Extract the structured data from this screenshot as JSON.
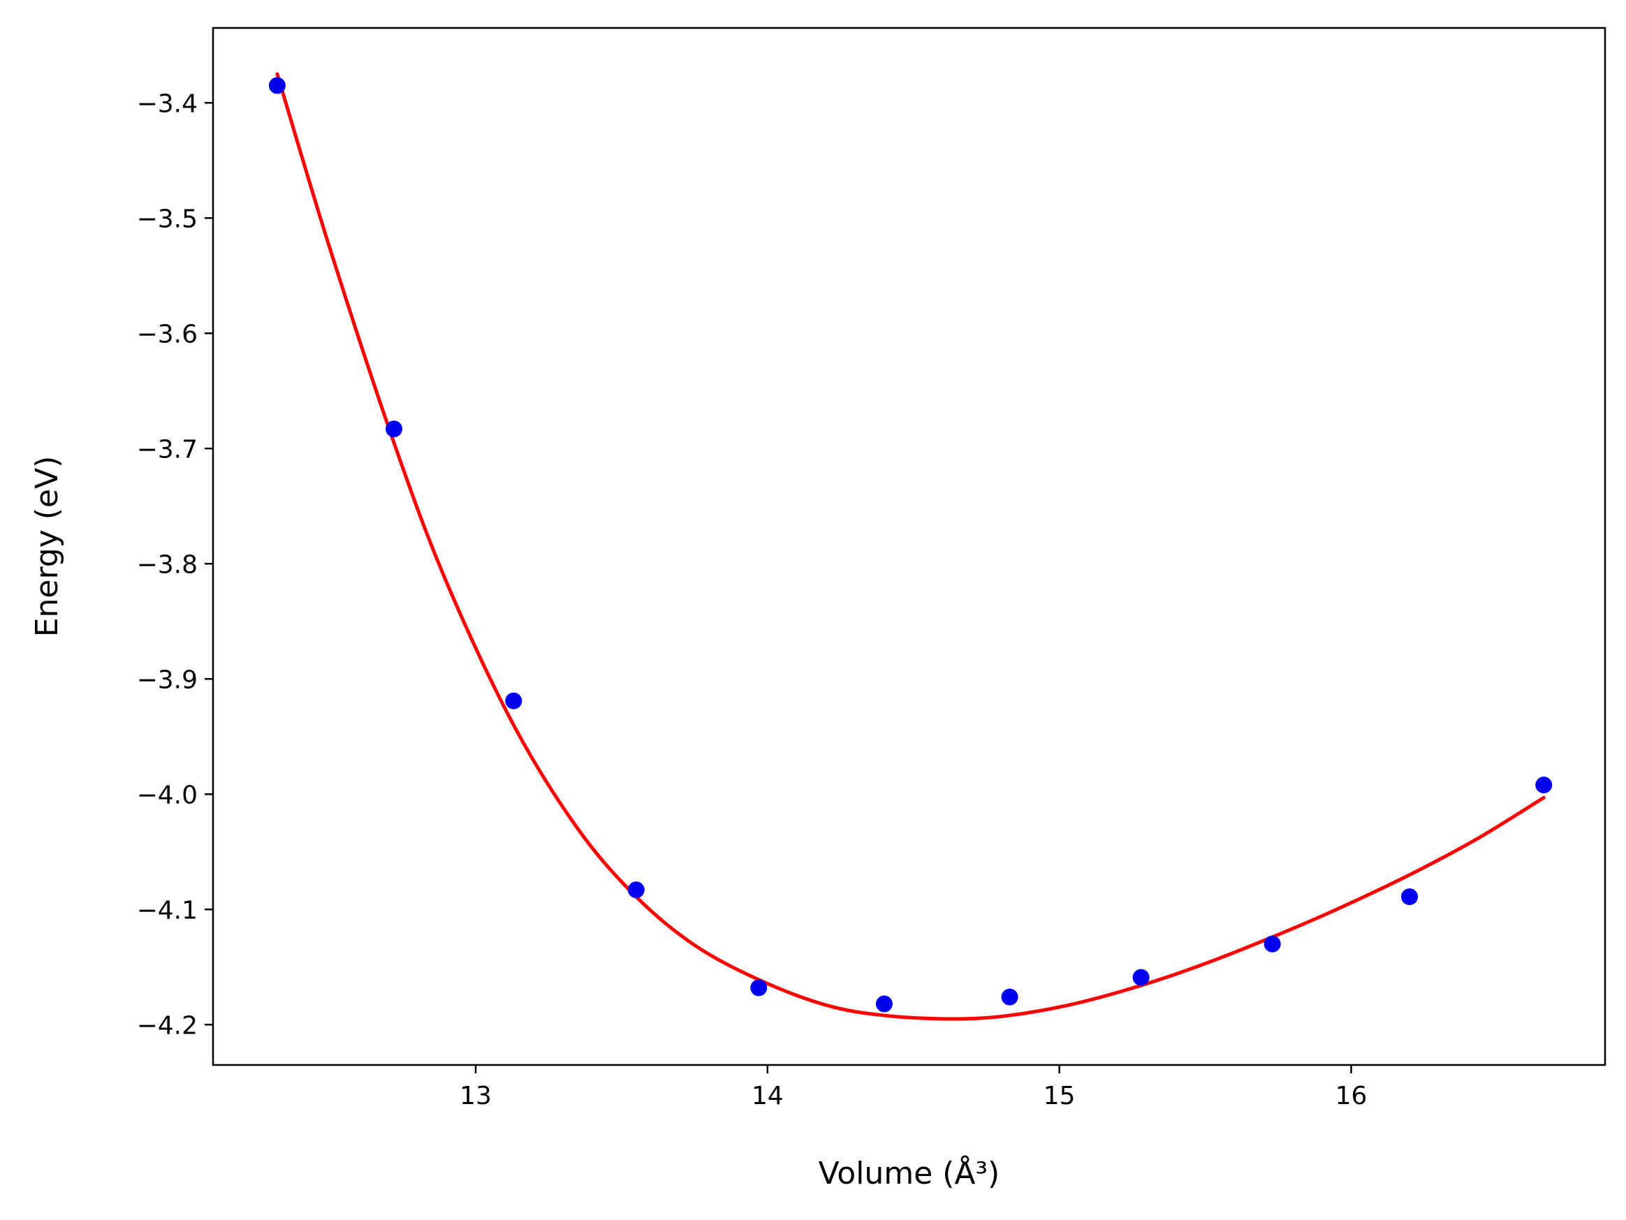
{
  "chart_data": {
    "type": "scatter",
    "title": "",
    "xlabel": "Volume (Å³)",
    "ylabel": "Energy (eV)",
    "xlim": [
      12.1,
      16.87
    ],
    "ylim": [
      -4.235,
      -3.335
    ],
    "xticks": [
      13,
      14,
      15,
      16
    ],
    "xtick_labels": [
      "13",
      "14",
      "15",
      "16"
    ],
    "yticks": [
      -3.4,
      -3.5,
      -3.6,
      -3.7,
      -3.8,
      -3.9,
      -4.0,
      -4.1,
      -4.2
    ],
    "ytick_labels": [
      "−3.4",
      "−3.5",
      "−3.6",
      "−3.7",
      "−3.8",
      "−3.9",
      "−4.0",
      "−4.1",
      "−4.2"
    ],
    "grid": false,
    "legend": "none",
    "series": [
      {
        "kind": "points",
        "color": "#0000ee",
        "x": [
          12.32,
          12.72,
          13.13,
          13.55,
          13.97,
          14.4,
          14.83,
          15.28,
          15.73,
          16.2,
          16.66
        ],
        "y": [
          -3.385,
          -3.683,
          -3.919,
          -4.083,
          -4.168,
          -4.182,
          -4.176,
          -4.159,
          -4.13,
          -4.089,
          -3.992
        ]
      },
      {
        "kind": "fit-curve",
        "color": "#ff0000",
        "x": [
          12.32,
          12.5,
          12.72,
          12.9,
          13.13,
          13.35,
          13.55,
          13.75,
          13.97,
          14.2,
          14.4,
          14.64,
          14.83,
          15.05,
          15.28,
          15.5,
          15.73,
          15.95,
          16.2,
          16.43,
          16.66
        ],
        "y": [
          -3.375,
          -3.526,
          -3.695,
          -3.816,
          -3.94,
          -4.03,
          -4.089,
          -4.131,
          -4.161,
          -4.183,
          -4.192,
          -4.195,
          -4.192,
          -4.182,
          -4.166,
          -4.147,
          -4.124,
          -4.1,
          -4.07,
          -4.039,
          -4.003
        ]
      }
    ]
  }
}
